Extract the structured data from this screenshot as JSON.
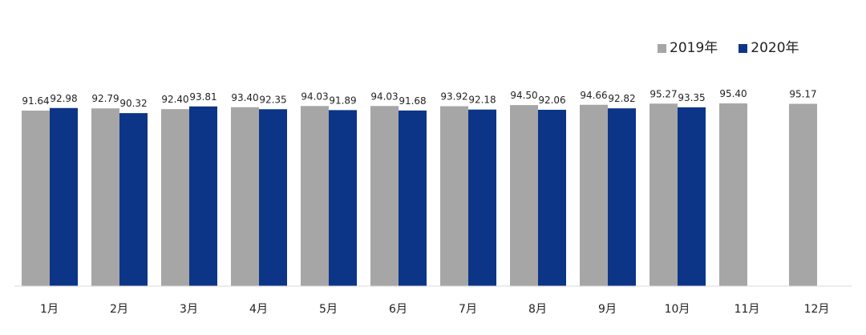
{
  "chart_data": {
    "type": "bar",
    "title": "",
    "xlabel": "",
    "ylabel": "",
    "categories": [
      "1月",
      "2月",
      "3月",
      "4月",
      "5月",
      "6月",
      "7月",
      "8月",
      "9月",
      "10月",
      "11月",
      "12月"
    ],
    "series": [
      {
        "name": "2019年",
        "color": "#a6a6a6",
        "values": [
          91.64,
          92.79,
          92.4,
          93.4,
          94.03,
          94.03,
          93.92,
          94.5,
          94.66,
          95.27,
          95.4,
          95.17
        ],
        "labels": [
          "91.64",
          "92.79",
          "92.40",
          "93.40",
          "94.03",
          "94.03",
          "93.92",
          "94.50",
          "94.66",
          "95.27",
          "95.40",
          "95.17"
        ]
      },
      {
        "name": "2020年",
        "color": "#0c3587",
        "values": [
          92.98,
          90.32,
          93.81,
          92.35,
          91.89,
          91.68,
          92.18,
          92.06,
          92.82,
          93.35,
          null,
          null
        ],
        "labels": [
          "92.98",
          "90.32",
          "93.81",
          "92.35",
          "91.89",
          "91.68",
          "92.18",
          "92.06",
          "92.82",
          "93.35",
          "",
          ""
        ]
      }
    ],
    "ylim": [
      0,
      100
    ],
    "grid": false,
    "legend_position": "top-right"
  }
}
